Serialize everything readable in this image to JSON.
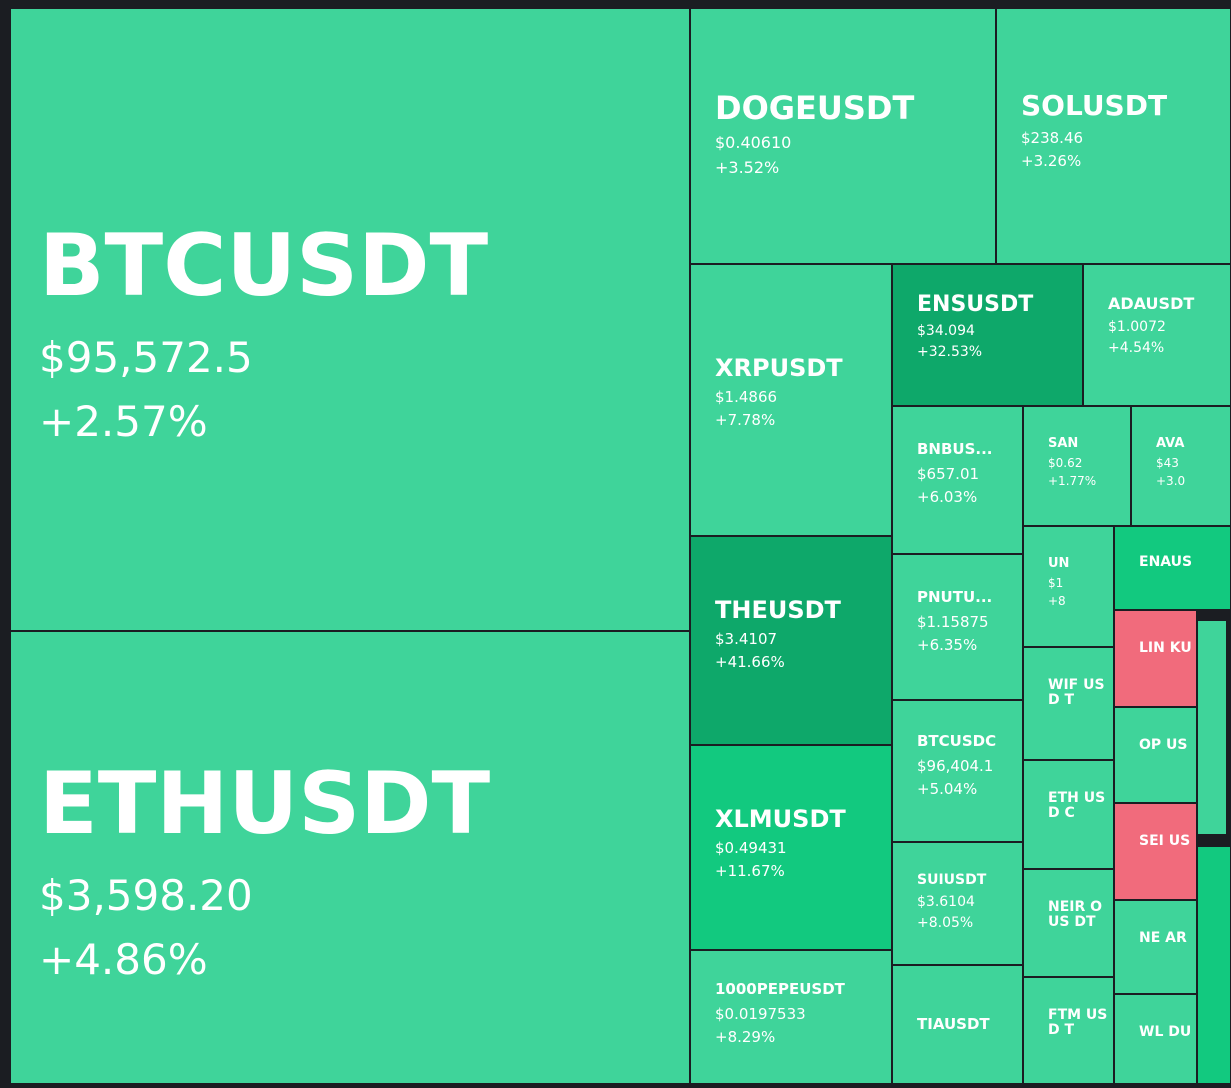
{
  "colors": {
    "up_1": "#3fd49a",
    "up_2": "#12c97f",
    "up_3": "#0ea86a",
    "down": "#f16b7c",
    "border": "#1b1d22"
  },
  "tiles": [
    {
      "symbol": "BTCUSDT",
      "price": "$95,572.5",
      "change": "+2.57%",
      "tone": "up_1"
    },
    {
      "symbol": "ETHUSDT",
      "price": "$3,598.20",
      "change": "+4.86%",
      "tone": "up_1"
    },
    {
      "symbol": "DOGEUSDT",
      "price": "$0.40610",
      "change": "+3.52%",
      "tone": "up_1"
    },
    {
      "symbol": "SOLUSDT",
      "price": "$238.46",
      "change": "+3.26%",
      "tone": "up_1"
    },
    {
      "symbol": "XRPUSDT",
      "price": "$1.4866",
      "change": "+7.78%",
      "tone": "up_1"
    },
    {
      "symbol": "ENSUSDT",
      "price": "$34.094",
      "change": "+32.53%",
      "tone": "up_3"
    },
    {
      "symbol": "ADAUSDT",
      "price": "$1.0072",
      "change": "+4.54%",
      "tone": "up_1"
    },
    {
      "symbol": "BNBUS...",
      "price": "$657.01",
      "change": "+6.03%",
      "tone": "up_1"
    },
    {
      "symbol": "SAN",
      "price": "$0.62",
      "change": "+1.77%",
      "tone": "up_1"
    },
    {
      "symbol": "AVA",
      "price": "$43",
      "change": "+3.0",
      "tone": "up_1"
    },
    {
      "symbol": "THEUSDT",
      "price": "$3.4107",
      "change": "+41.66%",
      "tone": "up_3"
    },
    {
      "symbol": "PNUTU...",
      "price": "$1.15875",
      "change": "+6.35%",
      "tone": "up_1"
    },
    {
      "symbol": "UN",
      "price": "$1",
      "change": "+8",
      "tone": "up_1"
    },
    {
      "symbol": "ENAUS",
      "price": "",
      "change": "",
      "tone": "up_2"
    },
    {
      "symbol": "LIN KU",
      "price": "",
      "change": "",
      "tone": "down"
    },
    {
      "symbol": "WIF USD T",
      "price": "",
      "change": "",
      "tone": "up_1"
    },
    {
      "symbol": "BTCUSDC",
      "price": "$96,404.1",
      "change": "+5.04%",
      "tone": "up_1"
    },
    {
      "symbol": "OP US",
      "price": "",
      "change": "",
      "tone": "up_1"
    },
    {
      "symbol": "XLMUSDT",
      "price": "$0.49431",
      "change": "+11.67%",
      "tone": "up_2"
    },
    {
      "symbol": "ETH USD C",
      "price": "",
      "change": "",
      "tone": "up_1"
    },
    {
      "symbol": "SEI US",
      "price": "",
      "change": "",
      "tone": "down"
    },
    {
      "symbol": "SUIUSDT",
      "price": "$3.6104",
      "change": "+8.05%",
      "tone": "up_1"
    },
    {
      "symbol": "NEIR OUS DT",
      "price": "",
      "change": "",
      "tone": "up_1"
    },
    {
      "symbol": "NE AR",
      "price": "",
      "change": "",
      "tone": "up_1"
    },
    {
      "symbol": "1000PEPEUSDT",
      "price": "$0.0197533",
      "change": "+8.29%",
      "tone": "up_1"
    },
    {
      "symbol": "TIAUSDT",
      "price": "",
      "change": "",
      "tone": "up_1"
    },
    {
      "symbol": "FTM USD T",
      "price": "",
      "change": "",
      "tone": "up_1"
    },
    {
      "symbol": "WL DU",
      "price": "",
      "change": "",
      "tone": "up_1"
    },
    {
      "symbol": "",
      "price": "",
      "change": "",
      "tone": "up_1"
    },
    {
      "symbol": "",
      "price": "",
      "change": "",
      "tone": "up_2"
    }
  ]
}
